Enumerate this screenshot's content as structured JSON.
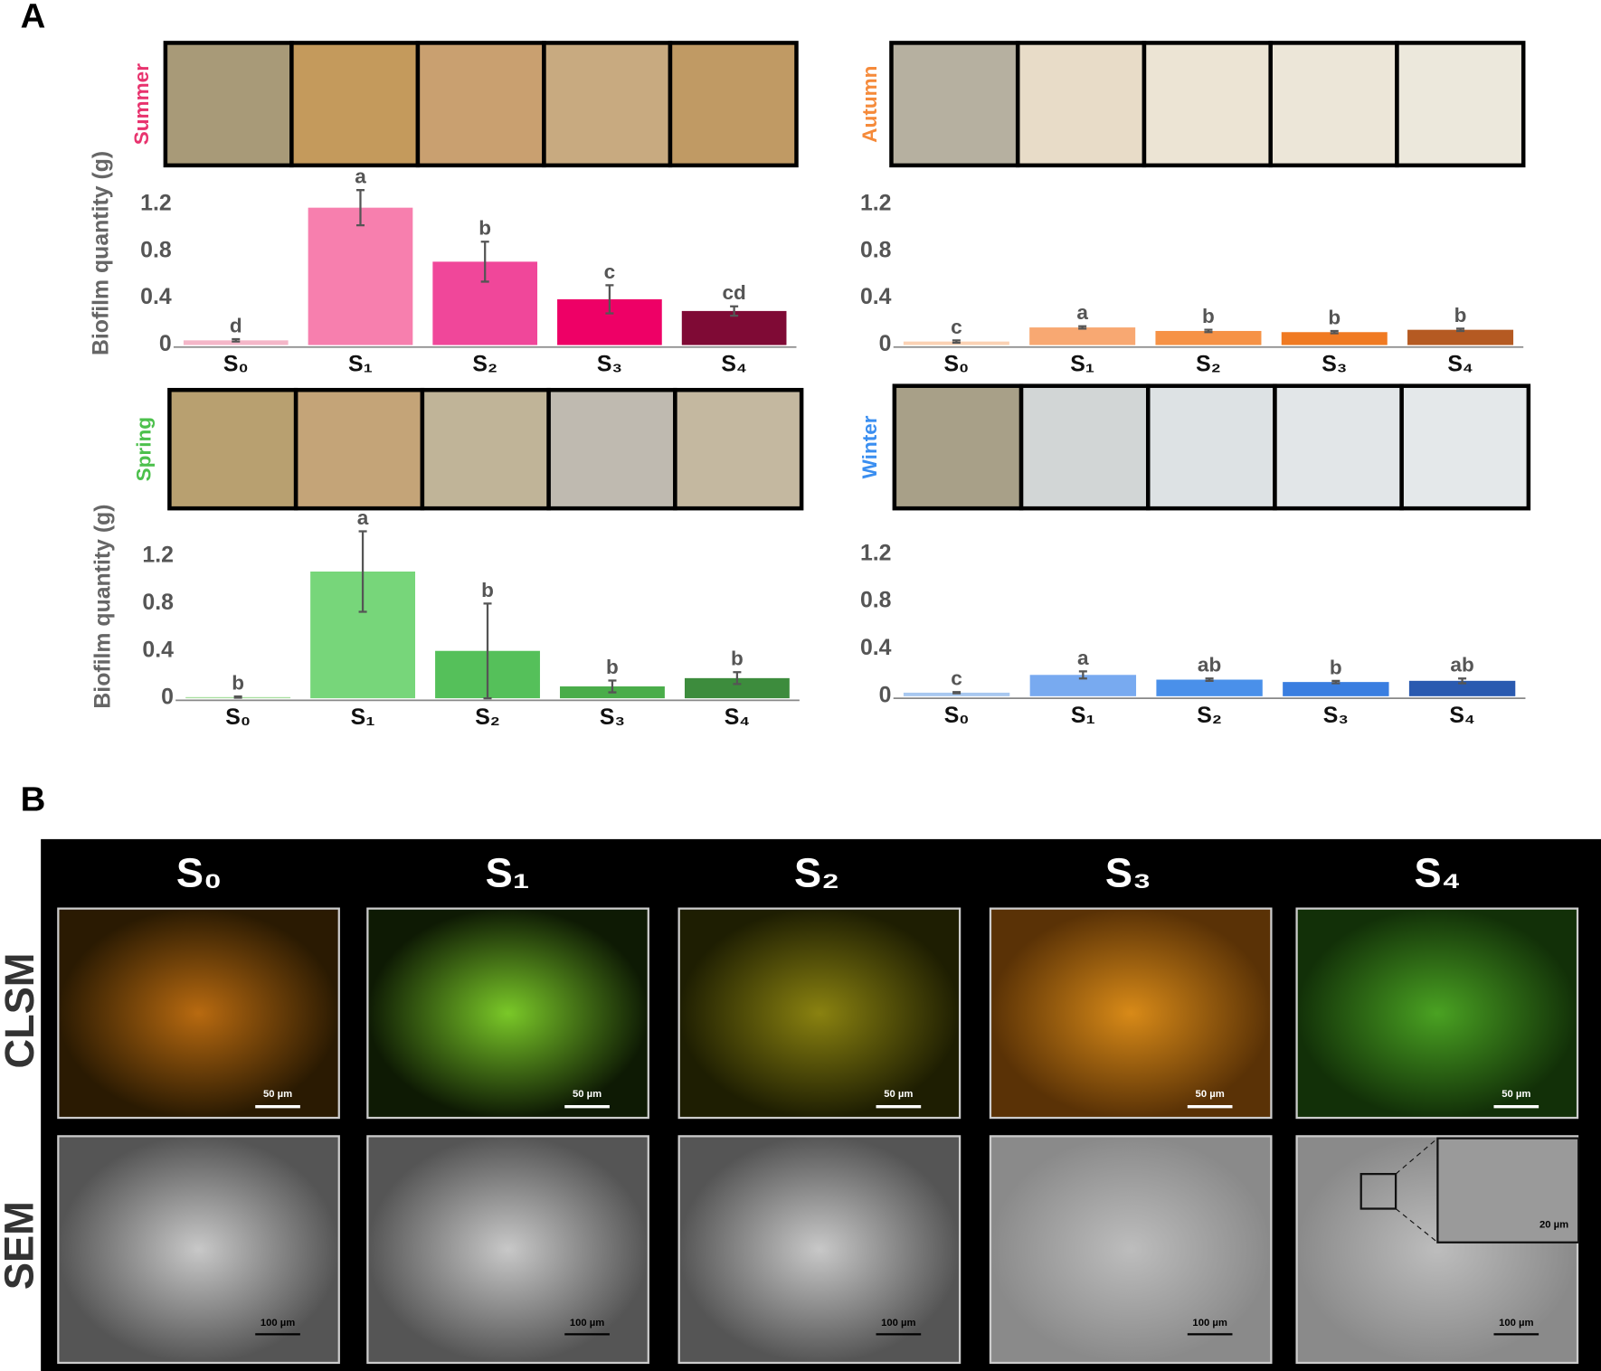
{
  "panel_labels": [
    "A",
    "B"
  ],
  "chart_data": [
    {
      "type": "bar",
      "title": "Summer",
      "title_color": "#e8336e",
      "ylabel": "Biofilm quantity (g)",
      "categories": [
        "S₀",
        "S₁",
        "S₂",
        "S₃",
        "S₄"
      ],
      "values": [
        0.04,
        1.17,
        0.71,
        0.39,
        0.29
      ],
      "errors": [
        0.01,
        0.15,
        0.17,
        0.12,
        0.04
      ],
      "letters": [
        "d",
        "a",
        "b",
        "c",
        "cd"
      ],
      "colors": [
        "#f4b6c8",
        "#f77fae",
        "#f0479a",
        "#ee0066",
        "#7f0a35"
      ],
      "ylim": [
        0,
        1.45
      ],
      "yticks": [
        0,
        0.4,
        0.8,
        1.2
      ]
    },
    {
      "type": "bar",
      "title": "Autumn",
      "title_color": "#f58a3a",
      "categories": [
        "S₀",
        "S₁",
        "S₂",
        "S₃",
        "S₄"
      ],
      "values": [
        0.03,
        0.15,
        0.12,
        0.11,
        0.13
      ],
      "errors": [
        0.01,
        0.01,
        0.01,
        0.01,
        0.01
      ],
      "letters": [
        "c",
        "a",
        "b",
        "b",
        "b"
      ],
      "colors": [
        "#fbd2b4",
        "#f8a872",
        "#f69246",
        "#f07a22",
        "#b55a22"
      ],
      "ylim": [
        0,
        1.45
      ],
      "yticks": [
        0,
        0.4,
        0.8,
        1.2
      ]
    },
    {
      "type": "bar",
      "title": "Spring",
      "title_color": "#4cc04c",
      "ylabel": "Biofilm quantity (g)",
      "categories": [
        "S₀",
        "S₁",
        "S₂",
        "S₃",
        "S₄"
      ],
      "values": [
        0.01,
        1.07,
        0.4,
        0.1,
        0.17
      ],
      "errors": [
        0.005,
        0.34,
        0.4,
        0.05,
        0.05
      ],
      "letters": [
        "b",
        "a",
        "b",
        "b",
        "b"
      ],
      "colors": [
        "#a8e0a0",
        "#77d67a",
        "#55c05a",
        "#4aad4a",
        "#3d8c3d"
      ],
      "ylim": [
        0,
        1.45
      ],
      "yticks": [
        0,
        0.4,
        0.8,
        1.2
      ]
    },
    {
      "type": "bar",
      "title": "Winter",
      "title_color": "#3a8ef0",
      "categories": [
        "S₀",
        "S₁",
        "S₂",
        "S₃",
        "S₄"
      ],
      "values": [
        0.03,
        0.18,
        0.14,
        0.12,
        0.13
      ],
      "errors": [
        0.005,
        0.03,
        0.01,
        0.01,
        0.02
      ],
      "letters": [
        "c",
        "a",
        "ab",
        "b",
        "ab"
      ],
      "colors": [
        "#a8c8f0",
        "#78aaf0",
        "#4a90ea",
        "#3a7ee0",
        "#2a5ab0"
      ],
      "ylim": [
        0,
        1.45
      ],
      "yticks": [
        0,
        0.4,
        0.8,
        1.2
      ]
    }
  ],
  "panel_b": {
    "columns": [
      "S₀",
      "S₁",
      "S₂",
      "S₃",
      "S₄"
    ],
    "rows": [
      "CLSM",
      "SEM"
    ],
    "clsm_scale": [
      "50 µm",
      "50 µm",
      "50 µm",
      "50 µm",
      "50 µm"
    ],
    "sem_scale": [
      "100 µm",
      "100 µm",
      "100 µm",
      "100 µm",
      "100 µm"
    ],
    "inset_scale": "20 µm"
  }
}
